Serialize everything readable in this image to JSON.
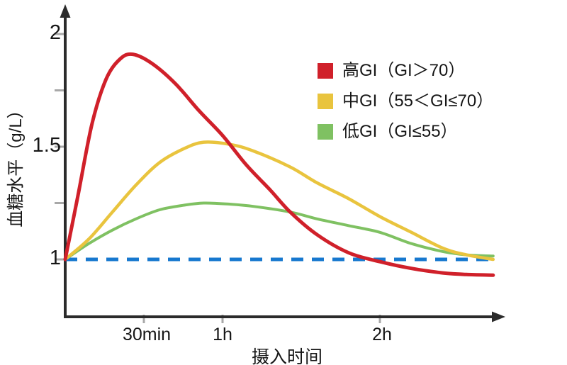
{
  "chart_data": {
    "type": "line",
    "title": "",
    "xlabel": "摄入时间",
    "ylabel": "血糖水平（g/L）",
    "x_axis": {
      "unit": "hours",
      "range": [
        0,
        2.8
      ],
      "ticks": [
        {
          "t": 0.5,
          "label": "30min"
        },
        {
          "t": 1.0,
          "label": "1h"
        },
        {
          "t": 2.0,
          "label": "2h"
        }
      ]
    },
    "y_axis": {
      "unit": "g/L",
      "range": [
        0.8,
        2.1
      ],
      "ticks": [
        {
          "v": 2.0,
          "label": "2",
          "major": true
        },
        {
          "v": 1.75,
          "label": "",
          "major": false
        },
        {
          "v": 1.5,
          "label": "1.5",
          "major": true
        },
        {
          "v": 1.25,
          "label": "",
          "major": false
        },
        {
          "v": 1.0,
          "label": "1",
          "major": true
        }
      ]
    },
    "baseline": {
      "value": 1.0,
      "style": "dashed",
      "color": "#1778cf"
    },
    "series": [
      {
        "name": "高GI（GI＞70）",
        "color": "#d0202a",
        "stroke_width": 5,
        "points": [
          [
            0,
            1.0
          ],
          [
            0.08,
            1.28
          ],
          [
            0.17,
            1.6
          ],
          [
            0.26,
            1.8
          ],
          [
            0.35,
            1.89
          ],
          [
            0.43,
            1.91
          ],
          [
            0.55,
            1.87
          ],
          [
            0.7,
            1.78
          ],
          [
            0.85,
            1.66
          ],
          [
            1.0,
            1.55
          ],
          [
            1.15,
            1.42
          ],
          [
            1.3,
            1.31
          ],
          [
            1.43,
            1.21
          ],
          [
            1.6,
            1.11
          ],
          [
            1.8,
            1.03
          ],
          [
            2.0,
            0.99
          ],
          [
            2.2,
            0.96
          ],
          [
            2.4,
            0.94
          ],
          [
            2.55,
            0.933
          ],
          [
            2.72,
            0.93
          ]
        ]
      },
      {
        "name": "中GI（55＜GI≤70）",
        "color": "#e9c43e",
        "stroke_width": 4.5,
        "points": [
          [
            0,
            1.0
          ],
          [
            0.15,
            1.09
          ],
          [
            0.3,
            1.21
          ],
          [
            0.45,
            1.33
          ],
          [
            0.6,
            1.43
          ],
          [
            0.75,
            1.49
          ],
          [
            0.88,
            1.52
          ],
          [
            1.05,
            1.51
          ],
          [
            1.2,
            1.48
          ],
          [
            1.43,
            1.41
          ],
          [
            1.6,
            1.34
          ],
          [
            1.8,
            1.27
          ],
          [
            2.0,
            1.19
          ],
          [
            2.2,
            1.12
          ],
          [
            2.4,
            1.05
          ],
          [
            2.55,
            1.02
          ],
          [
            2.72,
            1.0
          ]
        ]
      },
      {
        "name": "低GI（GI≤55）",
        "color": "#7fc162",
        "stroke_width": 4,
        "points": [
          [
            0,
            1.0
          ],
          [
            0.15,
            1.07
          ],
          [
            0.3,
            1.13
          ],
          [
            0.45,
            1.18
          ],
          [
            0.6,
            1.22
          ],
          [
            0.75,
            1.24
          ],
          [
            0.88,
            1.25
          ],
          [
            1.05,
            1.245
          ],
          [
            1.2,
            1.235
          ],
          [
            1.43,
            1.21
          ],
          [
            1.6,
            1.18
          ],
          [
            1.8,
            1.15
          ],
          [
            2.0,
            1.12
          ],
          [
            2.2,
            1.07
          ],
          [
            2.4,
            1.035
          ],
          [
            2.55,
            1.02
          ],
          [
            2.72,
            1.015
          ]
        ]
      }
    ],
    "legend_position": "top-right"
  },
  "colors": {
    "axis": "#2b2b2b",
    "tick": "#a8a8a8",
    "text": "#161616",
    "background": "#ffffff"
  }
}
